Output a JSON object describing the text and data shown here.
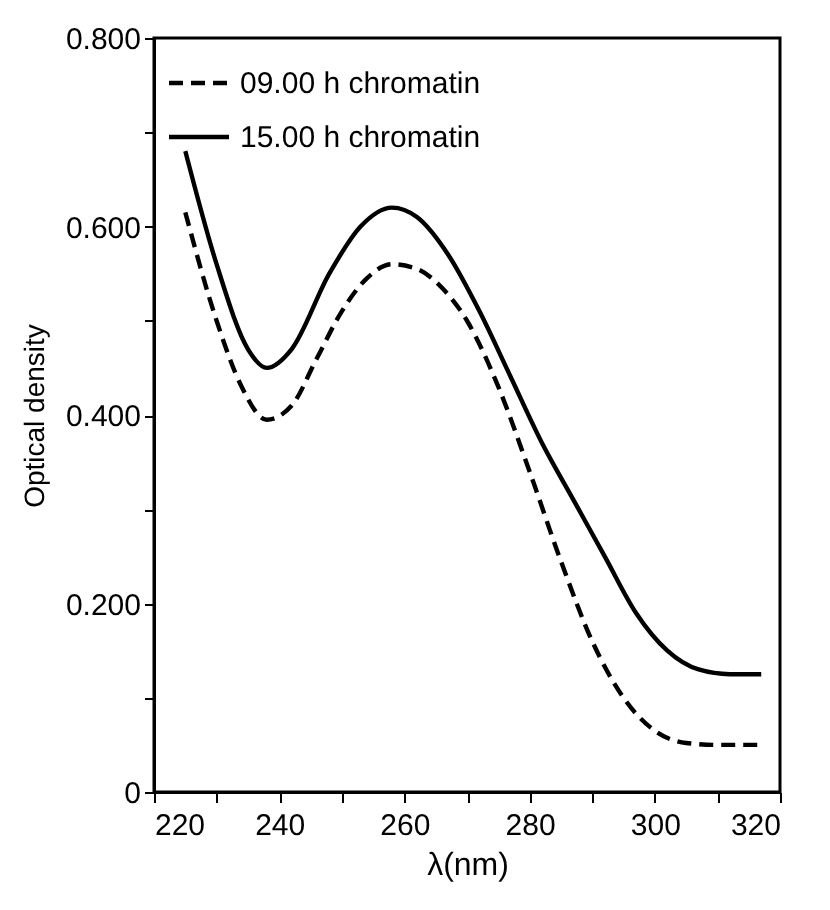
{
  "chart_data": {
    "type": "line",
    "xlabel": "λ(nm)",
    "ylabel": "Optical density",
    "xlim": [
      220,
      320
    ],
    "ylim": [
      0,
      0.8
    ],
    "xticks": [
      220,
      {
        "value": 230,
        "label": null
      },
      240,
      {
        "value": 250,
        "label": null
      },
      260,
      {
        "value": 270,
        "label": null
      },
      280,
      {
        "value": 290,
        "label": null
      },
      300,
      {
        "value": 310,
        "label": null
      },
      320
    ],
    "yticks": [
      0,
      {
        "value": 0.1,
        "label": null
      },
      {
        "value": 0.2,
        "label": "0.200"
      },
      {
        "value": 0.3,
        "label": null
      },
      {
        "value": 0.4,
        "label": "0.400"
      },
      {
        "value": 0.5,
        "label": null
      },
      {
        "value": 0.6,
        "label": "0.600"
      },
      {
        "value": 0.7,
        "label": null
      },
      {
        "value": 0.8,
        "label": "0.800"
      }
    ],
    "legend": "top left",
    "grid": false,
    "series": [
      {
        "name": "09.00 h chromatin",
        "color": "#000000",
        "line_style": "dashed",
        "x": [
          225,
          230,
          234,
          238,
          242,
          246,
          250,
          254,
          258,
          262,
          266,
          270,
          275,
          280,
          285,
          290,
          295,
          300,
          305,
          310,
          317
        ],
        "values": [
          0.615,
          0.5,
          0.43,
          0.395,
          0.41,
          0.46,
          0.51,
          0.545,
          0.56,
          0.555,
          0.535,
          0.5,
          0.43,
          0.34,
          0.245,
          0.16,
          0.1,
          0.065,
          0.052,
          0.05,
          0.05
        ]
      },
      {
        "name": "15.00 h chromatin",
        "color": "#000000",
        "line_style": "solid",
        "x": [
          225,
          230,
          235,
          238,
          242,
          248,
          253,
          258,
          262,
          267,
          272,
          277,
          282,
          287,
          292,
          297,
          302,
          307,
          312,
          317
        ],
        "values": [
          0.68,
          0.56,
          0.47,
          0.45,
          0.47,
          0.55,
          0.6,
          0.62,
          0.61,
          0.57,
          0.51,
          0.44,
          0.37,
          0.31,
          0.25,
          0.19,
          0.15,
          0.13,
          0.125,
          0.125
        ]
      }
    ]
  }
}
